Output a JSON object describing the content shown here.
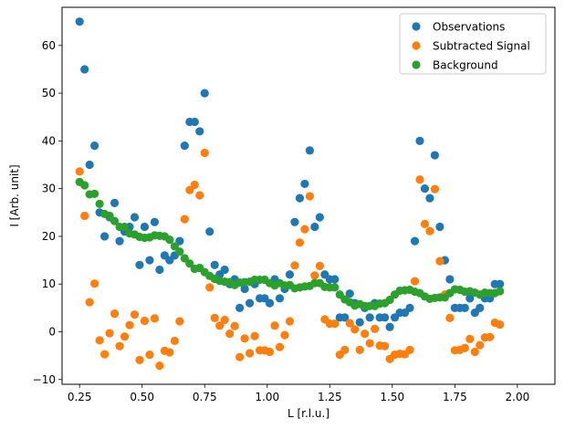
{
  "chart_data": {
    "type": "scatter",
    "title": "",
    "xlabel": "L [r.l.u.]",
    "ylabel": "I [Arb. unit]",
    "xlim": [
      0.18,
      2.15
    ],
    "ylim": [
      -11,
      68
    ],
    "xticks": [
      0.25,
      0.5,
      0.75,
      1.0,
      1.25,
      1.5,
      1.75,
      2.0
    ],
    "xtick_labels": [
      "0.25",
      "0.50",
      "0.75",
      "1.00",
      "1.25",
      "1.50",
      "1.75",
      "2.00"
    ],
    "yticks": [
      -10,
      0,
      10,
      20,
      30,
      40,
      50,
      60
    ],
    "ytick_labels": [
      "−10",
      "0",
      "10",
      "20",
      "30",
      "40",
      "50",
      "60"
    ],
    "grid": false,
    "legend_position": "top-right",
    "series": [
      {
        "name": "Observations",
        "color": "#1f77b4",
        "points": [
          [
            0.25,
            65
          ],
          [
            0.27,
            55
          ],
          [
            0.29,
            35
          ],
          [
            0.31,
            39
          ],
          [
            0.33,
            25
          ],
          [
            0.35,
            20
          ],
          [
            0.37,
            24
          ],
          [
            0.39,
            27
          ],
          [
            0.41,
            19
          ],
          [
            0.43,
            21
          ],
          [
            0.45,
            22
          ],
          [
            0.47,
            24
          ],
          [
            0.49,
            14
          ],
          [
            0.51,
            22
          ],
          [
            0.53,
            15
          ],
          [
            0.55,
            23
          ],
          [
            0.57,
            13
          ],
          [
            0.59,
            16
          ],
          [
            0.61,
            15
          ],
          [
            0.63,
            16
          ],
          [
            0.65,
            19
          ],
          [
            0.67,
            39
          ],
          [
            0.69,
            44
          ],
          [
            0.71,
            44
          ],
          [
            0.73,
            42
          ],
          [
            0.75,
            50
          ],
          [
            0.77,
            21
          ],
          [
            0.79,
            14
          ],
          [
            0.81,
            12
          ],
          [
            0.83,
            13
          ],
          [
            0.85,
            10
          ],
          [
            0.87,
            11
          ],
          [
            0.89,
            5
          ],
          [
            0.91,
            9
          ],
          [
            0.93,
            6
          ],
          [
            0.95,
            10
          ],
          [
            0.97,
            7
          ],
          [
            0.99,
            7
          ],
          [
            1.01,
            6
          ],
          [
            1.03,
            11
          ],
          [
            1.05,
            7
          ],
          [
            1.07,
            9
          ],
          [
            1.09,
            12
          ],
          [
            1.11,
            23
          ],
          [
            1.13,
            28
          ],
          [
            1.15,
            31
          ],
          [
            1.17,
            38
          ],
          [
            1.19,
            22
          ],
          [
            1.21,
            24
          ],
          [
            1.23,
            12
          ],
          [
            1.25,
            11
          ],
          [
            1.27,
            11
          ],
          [
            1.29,
            3
          ],
          [
            1.31,
            3
          ],
          [
            1.33,
            8
          ],
          [
            1.35,
            6
          ],
          [
            1.37,
            2
          ],
          [
            1.39,
            5
          ],
          [
            1.41,
            3
          ],
          [
            1.43,
            6
          ],
          [
            1.45,
            3
          ],
          [
            1.47,
            3
          ],
          [
            1.49,
            1
          ],
          [
            1.51,
            3
          ],
          [
            1.53,
            4
          ],
          [
            1.55,
            4
          ],
          [
            1.57,
            5
          ],
          [
            1.59,
            19
          ],
          [
            1.61,
            40
          ],
          [
            1.63,
            30
          ],
          [
            1.65,
            28
          ],
          [
            1.67,
            37
          ],
          [
            1.69,
            22
          ],
          [
            1.71,
            15
          ],
          [
            1.73,
            11
          ],
          [
            1.75,
            5
          ],
          [
            1.77,
            5
          ],
          [
            1.79,
            5
          ],
          [
            1.81,
            7
          ],
          [
            1.83,
            4
          ],
          [
            1.85,
            5
          ],
          [
            1.87,
            7
          ],
          [
            1.89,
            7
          ],
          [
            1.91,
            10
          ],
          [
            1.93,
            10
          ]
        ]
      },
      {
        "name": "Subtracted Signal",
        "color": "#ff7f0e",
        "points": [
          [
            0.25,
            33.6
          ],
          [
            0.27,
            24.3
          ],
          [
            0.29,
            6.2
          ],
          [
            0.31,
            10.1
          ],
          [
            0.33,
            -1.8
          ],
          [
            0.35,
            -4.7
          ],
          [
            0.37,
            -0.3
          ],
          [
            0.39,
            3.8
          ],
          [
            0.41,
            -3.0
          ],
          [
            0.43,
            -1.0
          ],
          [
            0.45,
            1.4
          ],
          [
            0.47,
            3.6
          ],
          [
            0.49,
            -5.9
          ],
          [
            0.51,
            2.3
          ],
          [
            0.53,
            -4.8
          ],
          [
            0.55,
            2.8
          ],
          [
            0.57,
            -7.1
          ],
          [
            0.59,
            -4.0
          ],
          [
            0.61,
            -4.3
          ],
          [
            0.63,
            -1.9
          ],
          [
            0.65,
            2.2
          ],
          [
            0.67,
            23.6
          ],
          [
            0.69,
            29.7
          ],
          [
            0.71,
            30.8
          ],
          [
            0.73,
            28.6
          ],
          [
            0.75,
            37.5
          ],
          [
            0.77,
            9.3
          ],
          [
            0.79,
            2.9
          ],
          [
            0.81,
            1.3
          ],
          [
            0.83,
            2.5
          ],
          [
            0.85,
            -0.4
          ],
          [
            0.87,
            1.2
          ],
          [
            0.89,
            -5.3
          ],
          [
            0.91,
            -1.4
          ],
          [
            0.93,
            -4.5
          ],
          [
            0.95,
            -0.9
          ],
          [
            0.97,
            -3.9
          ],
          [
            0.99,
            -3.9
          ],
          [
            1.01,
            -4.2
          ],
          [
            1.03,
            1.3
          ],
          [
            1.05,
            -3.2
          ],
          [
            1.07,
            -0.7
          ],
          [
            1.09,
            2.2
          ],
          [
            1.11,
            13.9
          ],
          [
            1.13,
            18.7
          ],
          [
            1.15,
            21.5
          ],
          [
            1.17,
            28.4
          ],
          [
            1.19,
            11.8
          ],
          [
            1.21,
            13.8
          ],
          [
            1.23,
            2.6
          ],
          [
            1.25,
            1.7
          ],
          [
            1.27,
            1.7
          ],
          [
            1.29,
            -4.8
          ],
          [
            1.31,
            -3.8
          ],
          [
            1.33,
            1.8
          ],
          [
            1.35,
            0.5
          ],
          [
            1.37,
            -3.8
          ],
          [
            1.39,
            -0.4
          ],
          [
            1.41,
            -2.4
          ],
          [
            1.43,
            0.6
          ],
          [
            1.45,
            -2.9
          ],
          [
            1.47,
            -3.0
          ],
          [
            1.49,
            -5.7
          ],
          [
            1.51,
            -4.8
          ],
          [
            1.53,
            -4.6
          ],
          [
            1.55,
            -4.7
          ],
          [
            1.57,
            -3.8
          ],
          [
            1.59,
            10.6
          ],
          [
            1.61,
            31.9
          ],
          [
            1.63,
            22.6
          ],
          [
            1.65,
            21.1
          ],
          [
            1.67,
            29.9
          ],
          [
            1.69,
            14.8
          ],
          [
            1.71,
            7.8
          ],
          [
            1.73,
            2.9
          ],
          [
            1.75,
            -3.9
          ],
          [
            1.77,
            -3.8
          ],
          [
            1.79,
            -3.4
          ],
          [
            1.81,
            -1.5
          ],
          [
            1.83,
            -4.2
          ],
          [
            1.85,
            -2.8
          ],
          [
            1.87,
            -1.2
          ],
          [
            1.89,
            -1.1
          ],
          [
            1.91,
            1.9
          ],
          [
            1.93,
            1.5
          ]
        ]
      },
      {
        "name": "Background",
        "color": "#2ca02c",
        "points": [
          [
            0.25,
            31.4
          ],
          [
            0.27,
            30.7
          ],
          [
            0.29,
            28.8
          ],
          [
            0.31,
            28.9
          ],
          [
            0.33,
            26.8
          ],
          [
            0.35,
            24.7
          ],
          [
            0.37,
            24.3
          ],
          [
            0.39,
            23.2
          ],
          [
            0.41,
            22.0
          ],
          [
            0.43,
            22.0
          ],
          [
            0.45,
            20.6
          ],
          [
            0.47,
            20.4
          ],
          [
            0.49,
            19.9
          ],
          [
            0.51,
            19.7
          ],
          [
            0.53,
            19.8
          ],
          [
            0.55,
            20.2
          ],
          [
            0.57,
            20.1
          ],
          [
            0.59,
            20.0
          ],
          [
            0.61,
            19.3
          ],
          [
            0.63,
            17.9
          ],
          [
            0.65,
            16.8
          ],
          [
            0.67,
            15.4
          ],
          [
            0.69,
            14.3
          ],
          [
            0.71,
            13.2
          ],
          [
            0.73,
            13.4
          ],
          [
            0.75,
            12.5
          ],
          [
            0.77,
            11.7
          ],
          [
            0.79,
            11.1
          ],
          [
            0.81,
            10.7
          ],
          [
            0.83,
            10.5
          ],
          [
            0.85,
            10.4
          ],
          [
            0.87,
            9.8
          ],
          [
            0.89,
            10.3
          ],
          [
            0.91,
            10.4
          ],
          [
            0.93,
            10.5
          ],
          [
            0.95,
            10.9
          ],
          [
            0.97,
            10.9
          ],
          [
            0.99,
            10.9
          ],
          [
            1.01,
            10.2
          ],
          [
            1.03,
            9.7
          ],
          [
            1.05,
            10.2
          ],
          [
            1.07,
            9.7
          ],
          [
            1.09,
            9.8
          ],
          [
            1.11,
            9.1
          ],
          [
            1.13,
            9.3
          ],
          [
            1.15,
            9.5
          ],
          [
            1.17,
            9.6
          ],
          [
            1.19,
            10.2
          ],
          [
            1.21,
            10.2
          ],
          [
            1.23,
            9.4
          ],
          [
            1.25,
            9.3
          ],
          [
            1.27,
            9.3
          ],
          [
            1.29,
            7.8
          ],
          [
            1.31,
            6.8
          ],
          [
            1.33,
            6.2
          ],
          [
            1.35,
            5.5
          ],
          [
            1.37,
            5.8
          ],
          [
            1.39,
            5.4
          ],
          [
            1.41,
            5.4
          ],
          [
            1.43,
            5.4
          ],
          [
            1.45,
            5.9
          ],
          [
            1.47,
            6.0
          ],
          [
            1.49,
            6.7
          ],
          [
            1.51,
            7.8
          ],
          [
            1.53,
            8.6
          ],
          [
            1.55,
            8.7
          ],
          [
            1.57,
            8.8
          ],
          [
            1.59,
            8.4
          ],
          [
            1.61,
            8.1
          ],
          [
            1.63,
            7.4
          ],
          [
            1.65,
            6.9
          ],
          [
            1.67,
            7.1
          ],
          [
            1.69,
            7.2
          ],
          [
            1.71,
            7.2
          ],
          [
            1.73,
            8.1
          ],
          [
            1.75,
            8.9
          ],
          [
            1.77,
            8.8
          ],
          [
            1.79,
            8.4
          ],
          [
            1.81,
            8.5
          ],
          [
            1.83,
            8.2
          ],
          [
            1.85,
            7.8
          ],
          [
            1.87,
            8.2
          ],
          [
            1.89,
            8.1
          ],
          [
            1.91,
            8.1
          ],
          [
            1.93,
            8.5
          ]
        ]
      }
    ]
  }
}
